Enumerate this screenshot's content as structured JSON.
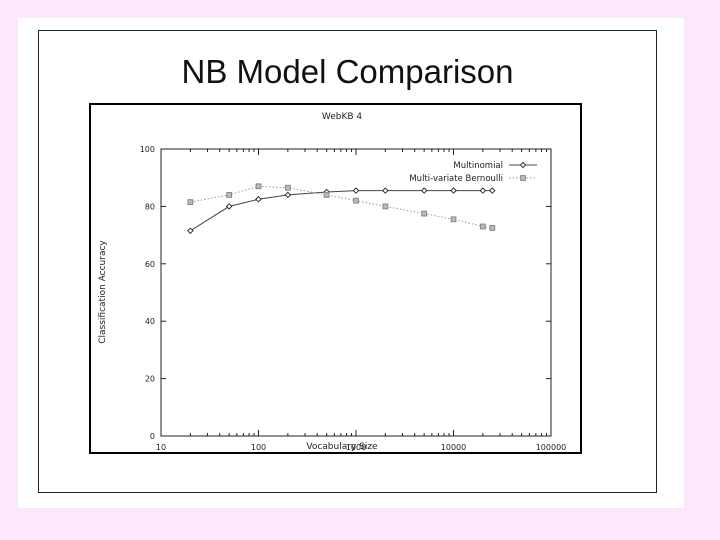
{
  "slide": {
    "title": "NB Model Comparison"
  },
  "chart_data": {
    "type": "line",
    "title": "WebKB 4",
    "xlabel": "Vocabulary Size",
    "ylabel": "Classification Accuracy",
    "xscale": "log",
    "xlim": [
      10,
      100000
    ],
    "ylim": [
      0,
      100
    ],
    "xticks": [
      10,
      100,
      1000,
      10000,
      100000
    ],
    "xtick_labels": [
      "10",
      "100",
      "1000",
      "10000",
      "100000"
    ],
    "yticks": [
      0,
      20,
      40,
      60,
      80,
      100
    ],
    "ytick_labels": [
      "0",
      "20",
      "40",
      "60",
      "80",
      "100"
    ],
    "grid": false,
    "legend_position": "top-right",
    "series": [
      {
        "name": "Multinomial",
        "marker": "diamond",
        "line_style": "solid",
        "x": [
          20,
          50,
          100,
          200,
          500,
          1000,
          2000,
          5000,
          10000,
          20000,
          25000
        ],
        "y": [
          71.5,
          80,
          82.5,
          84,
          85,
          85.5,
          85.5,
          85.5,
          85.5,
          85.5,
          85.5
        ]
      },
      {
        "name": "Multi-variate Bernoulli",
        "marker": "square",
        "line_style": "dotted",
        "x": [
          20,
          50,
          100,
          200,
          500,
          1000,
          2000,
          5000,
          10000,
          20000,
          25000
        ],
        "y": [
          81.5,
          84,
          87,
          86.5,
          84,
          82,
          80,
          77.5,
          75.5,
          73,
          72.5
        ]
      }
    ]
  }
}
